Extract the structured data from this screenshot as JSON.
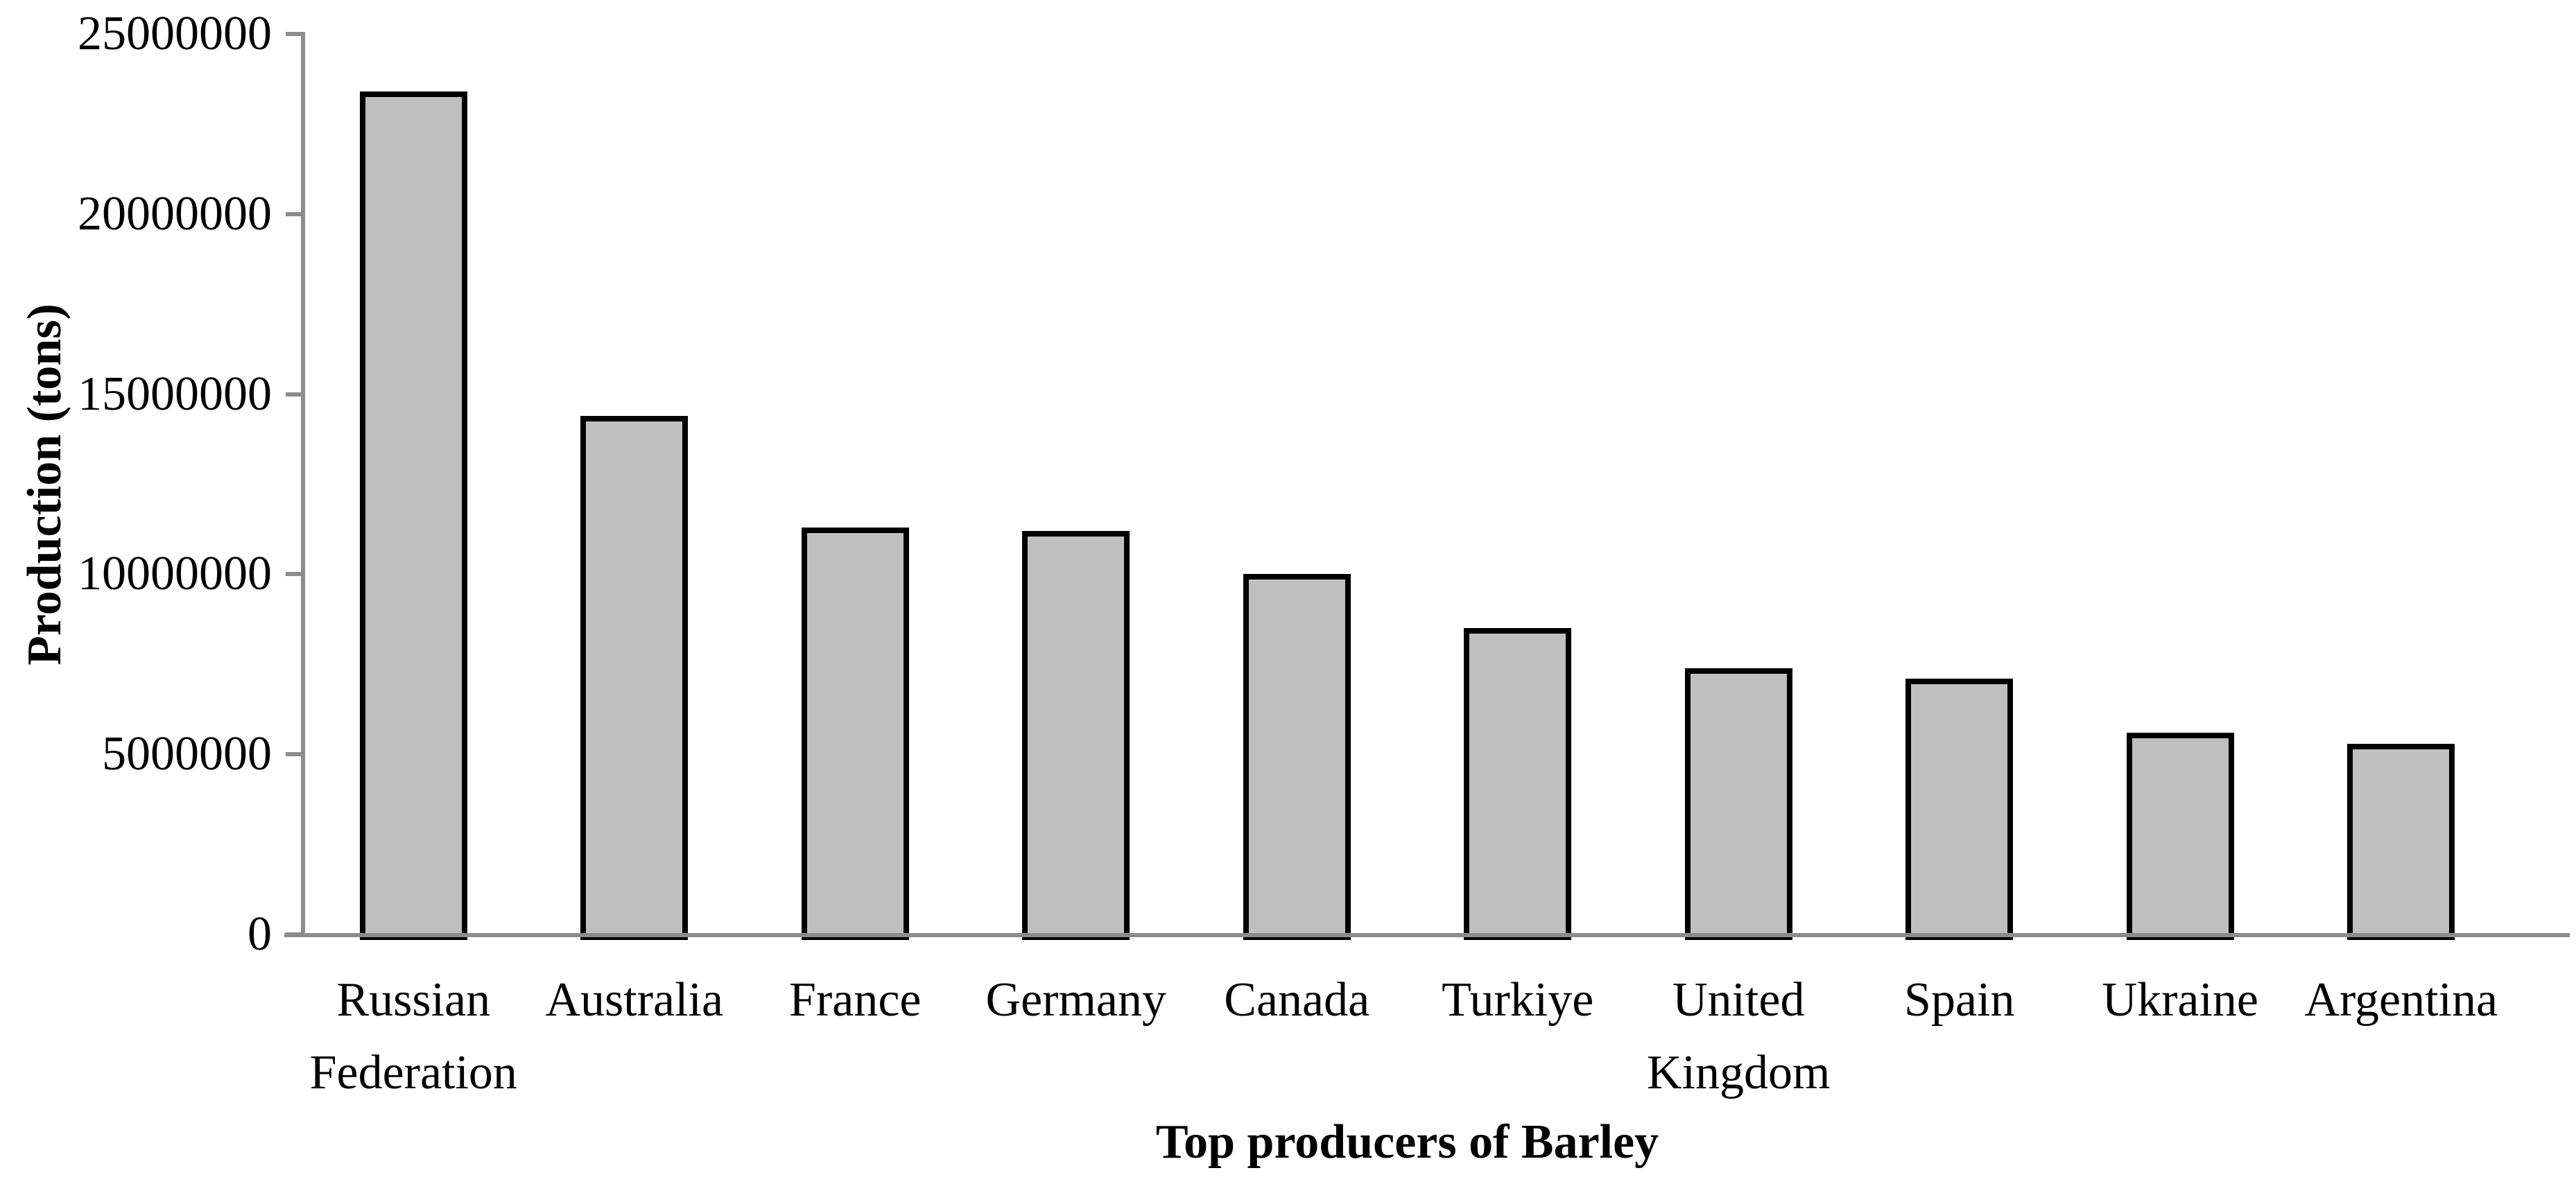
{
  "chart_data": {
    "type": "bar",
    "title": "",
    "xlabel": "Top producers of Barley",
    "ylabel": "Production (tons)",
    "categories": [
      "Russian Federation",
      "Australia",
      "France",
      "Germany",
      "Canada",
      "Turkiye",
      "United Kingdom",
      "Spain",
      "Ukraine",
      "Argentina"
    ],
    "values": [
      23400000,
      14400000,
      11300000,
      11200000,
      10000000,
      8500000,
      7400000,
      7100000,
      5600000,
      5300000
    ],
    "ylim": [
      0,
      25000000
    ],
    "ytick_interval": 5000000,
    "yticks": [
      0,
      5000000,
      10000000,
      15000000,
      20000000,
      25000000
    ],
    "ytick_labels": [
      "0",
      "5000000",
      "10000000",
      "15000000",
      "20000000",
      "25000000"
    ],
    "grid": false,
    "legend": "none",
    "bar_fill_color": "#BFBFBF",
    "bar_border_color": "#000000",
    "axis_color": "#8C8C8C",
    "text_color": "#000000"
  }
}
